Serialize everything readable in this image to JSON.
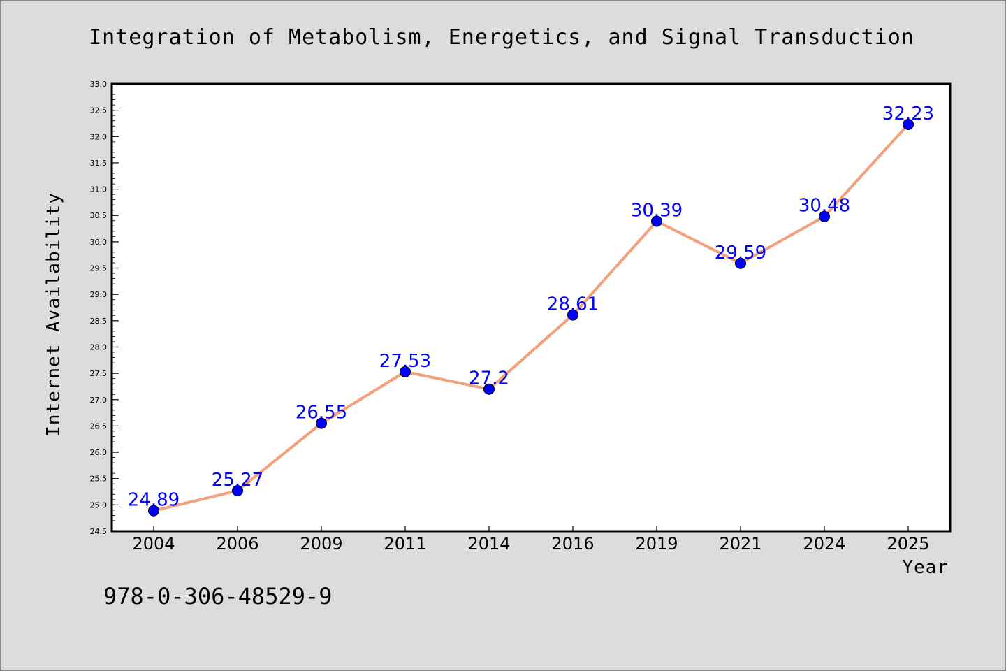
{
  "chart_data": {
    "type": "line",
    "title": "Integration of Metabolism, Energetics, and Signal Transduction",
    "xlabel": "Year",
    "ylabel": "Internet Availability",
    "categories": [
      "2004",
      "2006",
      "2009",
      "2011",
      "2014",
      "2016",
      "2019",
      "2021",
      "2024",
      "2025"
    ],
    "values": [
      24.89,
      25.27,
      26.55,
      27.53,
      27.2,
      28.61,
      30.39,
      29.59,
      30.48,
      32.23
    ],
    "data_labels": [
      "24.89",
      "25.27",
      "26.55",
      "27.53",
      "27.2",
      "28.61",
      "30.39",
      "29.59",
      "30.48",
      "32.23"
    ],
    "ylim": [
      24.5,
      33.0
    ],
    "y_ticks": [
      "24.5",
      "25.0",
      "25.5",
      "26.0",
      "26.5",
      "27.0",
      "27.5",
      "28.0",
      "28.5",
      "29.0",
      "29.5",
      "30.0",
      "30.5",
      "31.0",
      "31.5",
      "32.0",
      "32.5",
      "33.0"
    ],
    "grid": false,
    "legend": "none",
    "line_color": "#f4a07c",
    "marker_color": "#0000ff",
    "label_color": "#0000ff"
  },
  "footer": {
    "isbn": "978-0-306-48529-9"
  }
}
